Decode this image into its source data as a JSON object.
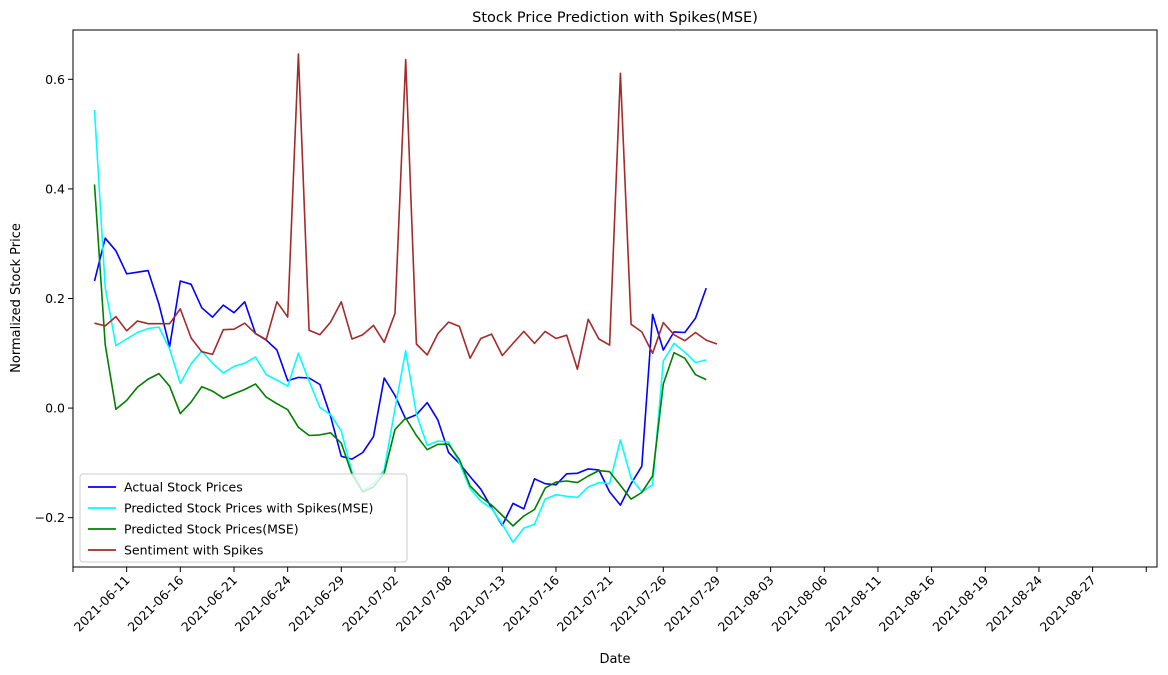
{
  "chart_data": {
    "type": "line",
    "title": "Stock Price Prediction with Spikes(MSE)",
    "xlabel": "Date",
    "ylabel": "Normalized Stock Price",
    "x_tick_labels": [
      "2021-06-11",
      "2021-06-16",
      "2021-06-21",
      "2021-06-24",
      "2021-06-29",
      "2021-07-02",
      "2021-07-08",
      "2021-07-13",
      "2021-07-16",
      "2021-07-21",
      "2021-07-26",
      "2021-07-29",
      "2021-08-03",
      "2021-08-06",
      "2021-08-11",
      "2021-08-16",
      "2021-08-19",
      "2021-08-24",
      "2021-08-27"
    ],
    "x_ticks_pos": [
      3,
      8,
      13,
      18,
      23,
      28,
      33,
      38,
      43,
      48,
      53,
      58,
      63,
      68,
      73,
      78,
      83,
      88,
      93
    ],
    "x_range": [
      -2,
      99
    ],
    "y_ticks": [
      -0.2,
      0.0,
      0.2,
      0.4,
      0.6
    ],
    "y_tick_labels": [
      "−0.2",
      "0.0",
      "0.2",
      "0.4",
      "0.6"
    ],
    "ylim": [
      -0.29,
      0.69
    ],
    "grid": false,
    "legend_position": "lower-left",
    "series": [
      {
        "name": "Actual Stock Prices",
        "color": "#0000ff",
        "values": [
          0.232,
          0.31,
          0.287,
          0.245,
          0.248,
          0.251,
          0.19,
          0.112,
          0.232,
          0.226,
          0.183,
          0.166,
          0.188,
          0.174,
          0.194,
          0.136,
          0.124,
          0.106,
          0.05,
          0.056,
          0.055,
          0.043,
          -0.015,
          -0.088,
          -0.093,
          -0.081,
          -0.052,
          0.055,
          0.023,
          -0.02,
          -0.012,
          0.01,
          -0.022,
          -0.081,
          -0.101,
          -0.125,
          -0.148,
          -0.182,
          -0.214,
          -0.174,
          -0.184,
          -0.129,
          -0.138,
          -0.14,
          -0.12,
          -0.119,
          -0.111,
          -0.113,
          -0.153,
          -0.177,
          -0.138,
          -0.106,
          0.171,
          0.106,
          0.139,
          0.138,
          0.164,
          0.219
        ]
      },
      {
        "name": "Predicted Stock Prices with Spikes(MSE)",
        "color": "#00ffff",
        "values": [
          0.544,
          0.22,
          0.114,
          0.126,
          0.138,
          0.145,
          0.148,
          0.108,
          0.045,
          0.081,
          0.104,
          0.082,
          0.064,
          0.076,
          0.082,
          0.093,
          0.061,
          0.051,
          0.04,
          0.1,
          0.049,
          0.001,
          -0.012,
          -0.042,
          -0.117,
          -0.151,
          -0.138,
          -0.113,
          -0.001,
          0.105,
          -0.011,
          -0.068,
          -0.06,
          -0.062,
          -0.1,
          -0.147,
          -0.17,
          -0.183,
          -0.212,
          -0.245,
          -0.219,
          -0.212,
          -0.166,
          -0.158,
          -0.161,
          -0.163,
          -0.144,
          -0.136,
          -0.138,
          -0.058,
          -0.128,
          -0.153,
          -0.14,
          0.086,
          0.118,
          0.102,
          0.083,
          0.088
        ]
      },
      {
        "name": "Predicted Stock Prices(MSE)",
        "color": "#008000",
        "values": [
          0.408,
          0.116,
          -0.002,
          0.014,
          0.038,
          0.053,
          0.063,
          0.04,
          -0.01,
          0.011,
          0.039,
          0.031,
          0.018,
          0.026,
          0.034,
          0.044,
          0.02,
          0.008,
          -0.003,
          -0.035,
          -0.05,
          -0.049,
          -0.045,
          -0.064,
          -0.121,
          -0.153,
          -0.144,
          -0.119,
          -0.039,
          -0.018,
          -0.05,
          -0.076,
          -0.066,
          -0.066,
          -0.094,
          -0.142,
          -0.162,
          -0.177,
          -0.196,
          -0.215,
          -0.197,
          -0.185,
          -0.146,
          -0.135,
          -0.133,
          -0.136,
          -0.124,
          -0.114,
          -0.116,
          -0.141,
          -0.166,
          -0.154,
          -0.124,
          0.044,
          0.101,
          0.091,
          0.061,
          0.052
        ]
      },
      {
        "name": "Sentiment with Spikes",
        "color": "#a52a2a",
        "values": [
          0.155,
          0.15,
          0.167,
          0.141,
          0.159,
          0.154,
          0.154,
          0.154,
          0.181,
          0.128,
          0.103,
          0.098,
          0.143,
          0.144,
          0.155,
          0.136,
          0.125,
          0.194,
          0.166,
          0.646,
          0.142,
          0.134,
          0.157,
          0.194,
          0.126,
          0.134,
          0.151,
          0.12,
          0.173,
          0.636,
          0.117,
          0.097,
          0.136,
          0.157,
          0.149,
          0.091,
          0.127,
          0.135,
          0.096,
          0.118,
          0.14,
          0.118,
          0.14,
          0.127,
          0.133,
          0.071,
          0.162,
          0.126,
          0.115,
          0.611,
          0.153,
          0.139,
          0.1,
          0.156,
          0.134,
          0.123,
          0.138,
          0.124,
          0.117
        ]
      }
    ]
  }
}
